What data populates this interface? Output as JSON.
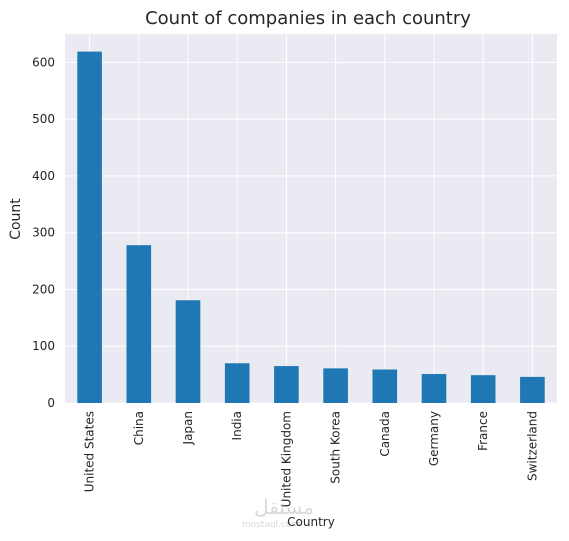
{
  "chart_data": {
    "type": "bar",
    "title": "Count of companies in each country",
    "xlabel": "Country",
    "ylabel": "Count",
    "categories": [
      "United States",
      "China",
      "Japan",
      "India",
      "United Kingdom",
      "South Korea",
      "Canada",
      "Germany",
      "France",
      "Switzerland"
    ],
    "values": [
      619,
      278,
      181,
      70,
      65,
      61,
      59,
      51,
      49,
      46
    ],
    "ylim": [
      0,
      650
    ],
    "yticks": [
      0,
      100,
      200,
      300,
      400,
      500,
      600
    ],
    "grid": true,
    "bar_color": "#1f77b4",
    "background_color": "#eaeaf2",
    "grid_color": "#ffffff"
  },
  "watermark": {
    "arabic": "مستقل",
    "latin": "mostaql.com"
  }
}
